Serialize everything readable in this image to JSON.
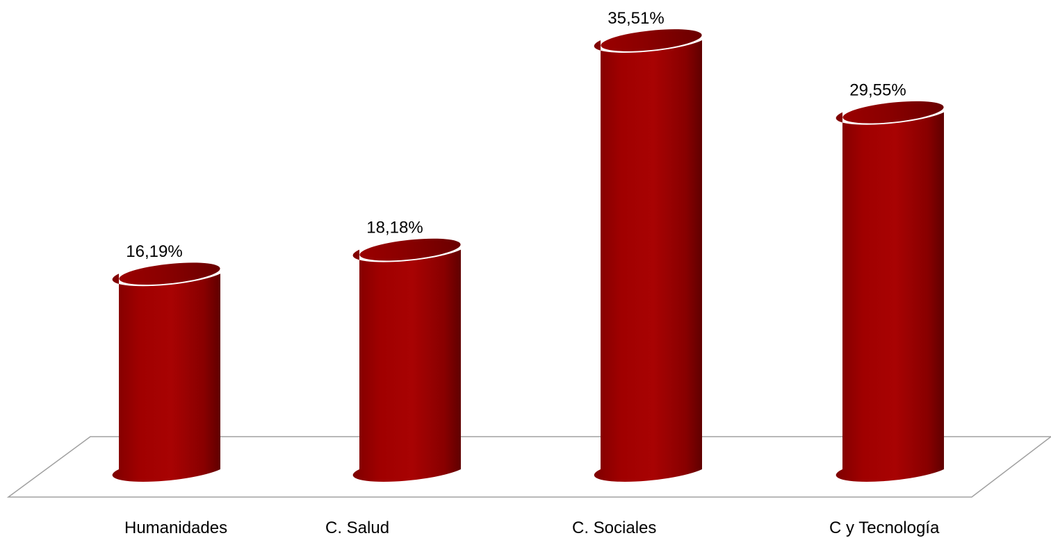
{
  "chart_data": {
    "type": "bar",
    "bar_shape": "cylinder",
    "view": "3d",
    "categories": [
      "Humanidades",
      "C. Salud",
      "C. Sociales",
      "C y Tecnología"
    ],
    "values": [
      16.19,
      18.18,
      35.51,
      29.55
    ],
    "data_labels": [
      "16,19%",
      "18,18%",
      "35,51%",
      "29,55%"
    ],
    "unit": "%",
    "ylim": [
      0,
      35.51
    ],
    "title": "",
    "xlabel": "",
    "ylabel": "",
    "grid": false,
    "legend": "none",
    "bar_color": "#a00000",
    "floor_color": "#a0a0a0"
  }
}
